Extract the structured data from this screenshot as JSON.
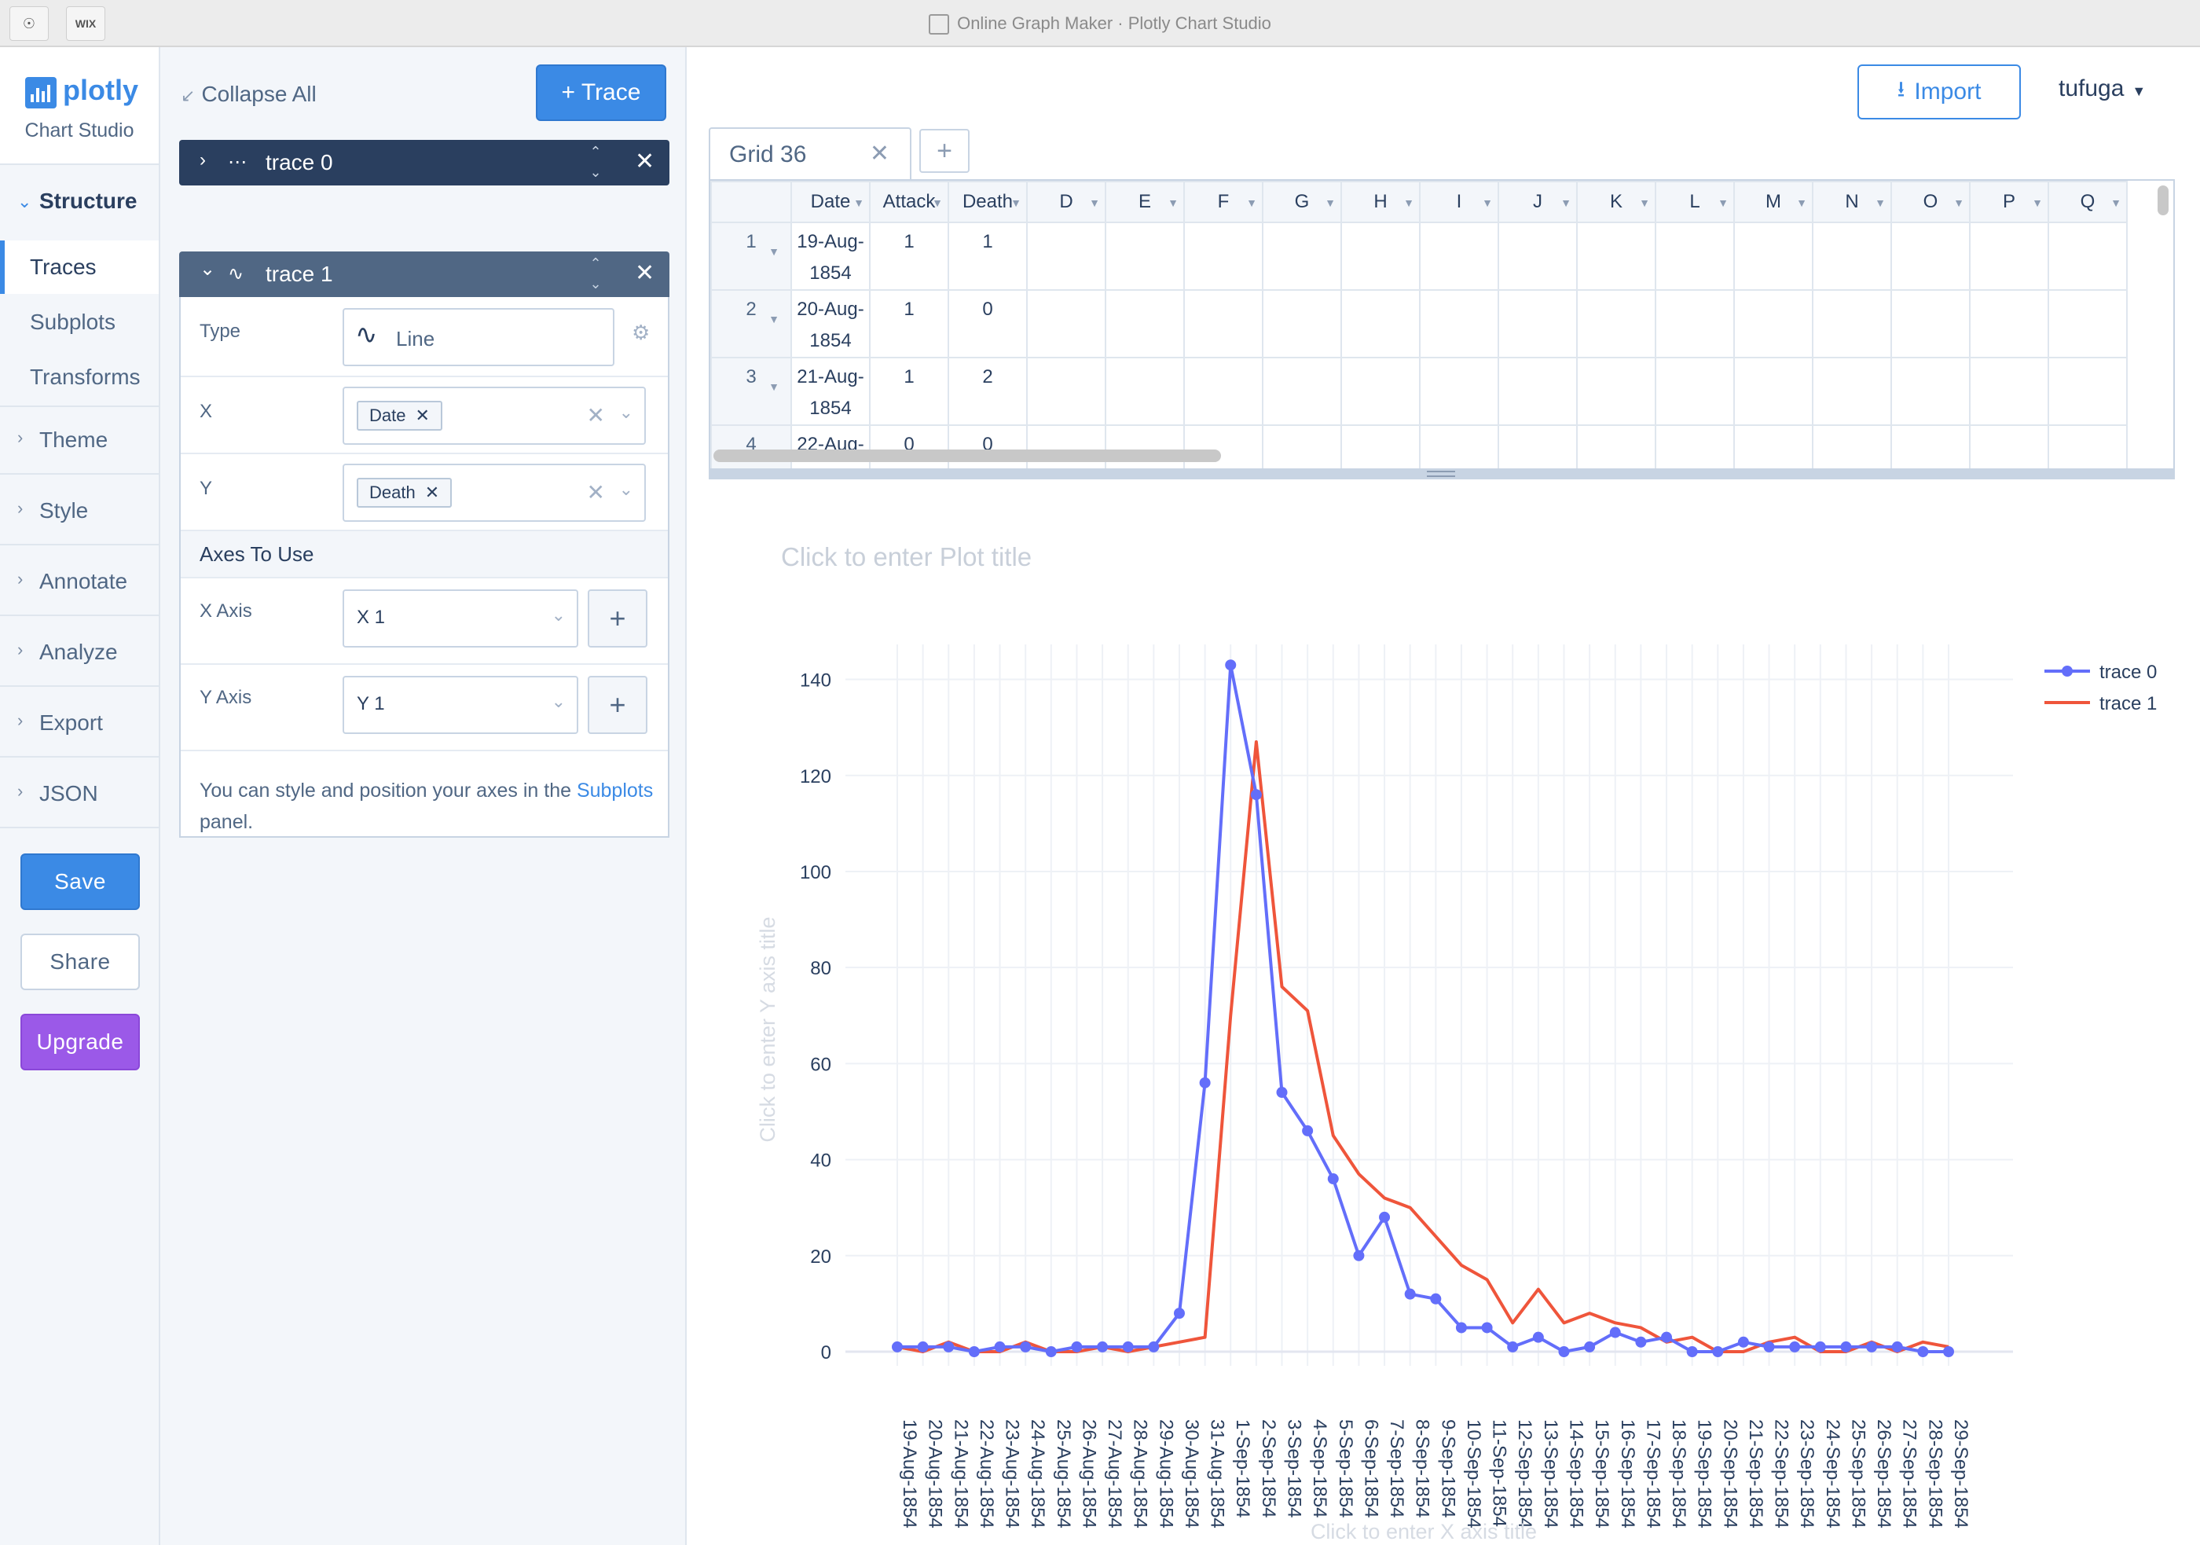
{
  "window": {
    "title": "Online Graph Maker · Plotly Chart Studio",
    "nav_icon": "compass-icon",
    "ext_label": "WIX"
  },
  "brand": {
    "name": "plotly",
    "sub": "Chart Studio"
  },
  "nav": {
    "structure": "Structure",
    "subs": [
      "Traces",
      "Subplots",
      "Transforms"
    ],
    "items": [
      "Theme",
      "Style",
      "Annotate",
      "Analyze",
      "Export",
      "JSON"
    ],
    "save": "Save",
    "share": "Share",
    "upgrade": "Upgrade"
  },
  "panel": {
    "collapse_all": "Collapse All",
    "add_trace": "+ Trace",
    "trace0": "trace 0",
    "trace1": "trace 1",
    "type_label": "Type",
    "type_value": "Line",
    "x_label": "X",
    "x_value": "Date",
    "y_label": "Y",
    "y_value": "Death",
    "axes_heading": "Axes To Use",
    "xaxis_label": "X Axis",
    "xaxis_value": "X 1",
    "yaxis_label": "Y Axis",
    "yaxis_value": "Y 1",
    "note_prefix": "You can style and position your axes in the",
    "note_link": "Subplots",
    "note_suffix": "panel."
  },
  "top": {
    "import": "Import",
    "user": "tufuga"
  },
  "grid": {
    "tab": "Grid 36",
    "headers": [
      "Date",
      "Attack",
      "Death",
      "D",
      "E",
      "F",
      "G",
      "H",
      "I",
      "J",
      "K",
      "L",
      "M",
      "N",
      "O",
      "P",
      "Q"
    ],
    "rows": [
      {
        "n": "1",
        "date1": "19-Aug-",
        "date2": "1854",
        "attack": "1",
        "death": "1"
      },
      {
        "n": "2",
        "date1": "20-Aug-",
        "date2": "1854",
        "attack": "1",
        "death": "0"
      },
      {
        "n": "3",
        "date1": "21-Aug-",
        "date2": "1854",
        "attack": "1",
        "death": "2"
      },
      {
        "n": "4",
        "date1": "22-Aug-",
        "date2": "1854",
        "attack": "0",
        "death": "0"
      }
    ]
  },
  "chart_data": {
    "type": "line",
    "title_placeholder": "Click to enter Plot title",
    "xlabel_placeholder": "Click to enter X axis title",
    "ylabel_placeholder": "Click to enter Y axis title",
    "ylim": [
      0,
      145
    ],
    "yticks": [
      0,
      20,
      40,
      60,
      80,
      100,
      120,
      140
    ],
    "legend_position": "top-right",
    "categories": [
      "19-Aug-1854",
      "20-Aug-1854",
      "21-Aug-1854",
      "22-Aug-1854",
      "23-Aug-1854",
      "24-Aug-1854",
      "25-Aug-1854",
      "26-Aug-1854",
      "27-Aug-1854",
      "28-Aug-1854",
      "29-Aug-1854",
      "30-Aug-1854",
      "31-Aug-1854",
      "1-Sep-1854",
      "2-Sep-1854",
      "3-Sep-1854",
      "4-Sep-1854",
      "5-Sep-1854",
      "6-Sep-1854",
      "7-Sep-1854",
      "8-Sep-1854",
      "9-Sep-1854",
      "10-Sep-1854",
      "11-Sep-1854",
      "12-Sep-1854",
      "13-Sep-1854",
      "14-Sep-1854",
      "15-Sep-1854",
      "16-Sep-1854",
      "17-Sep-1854",
      "18-Sep-1854",
      "19-Sep-1854",
      "20-Sep-1854",
      "21-Sep-1854",
      "22-Sep-1854",
      "23-Sep-1854",
      "24-Sep-1854",
      "25-Sep-1854",
      "26-Sep-1854",
      "27-Sep-1854",
      "28-Sep-1854",
      "29-Sep-1854"
    ],
    "series": [
      {
        "name": "trace 0",
        "color": "#636efa",
        "markers": true,
        "values": [
          1,
          1,
          1,
          0,
          1,
          1,
          0,
          1,
          1,
          1,
          1,
          8,
          56,
          143,
          116,
          54,
          46,
          36,
          20,
          28,
          12,
          11,
          5,
          5,
          1,
          3,
          0,
          1,
          4,
          2,
          3,
          0,
          0,
          2,
          1,
          1,
          1,
          1,
          1,
          1,
          0,
          0
        ]
      },
      {
        "name": "trace 1",
        "color": "#ef553b",
        "markers": false,
        "values": [
          1,
          0,
          2,
          0,
          0,
          2,
          0,
          0,
          1,
          0,
          1,
          2,
          3,
          70,
          127,
          76,
          71,
          45,
          37,
          32,
          30,
          24,
          18,
          15,
          6,
          13,
          6,
          8,
          6,
          5,
          2,
          3,
          0,
          0,
          2,
          3,
          0,
          0,
          2,
          0,
          2,
          1
        ]
      }
    ]
  }
}
